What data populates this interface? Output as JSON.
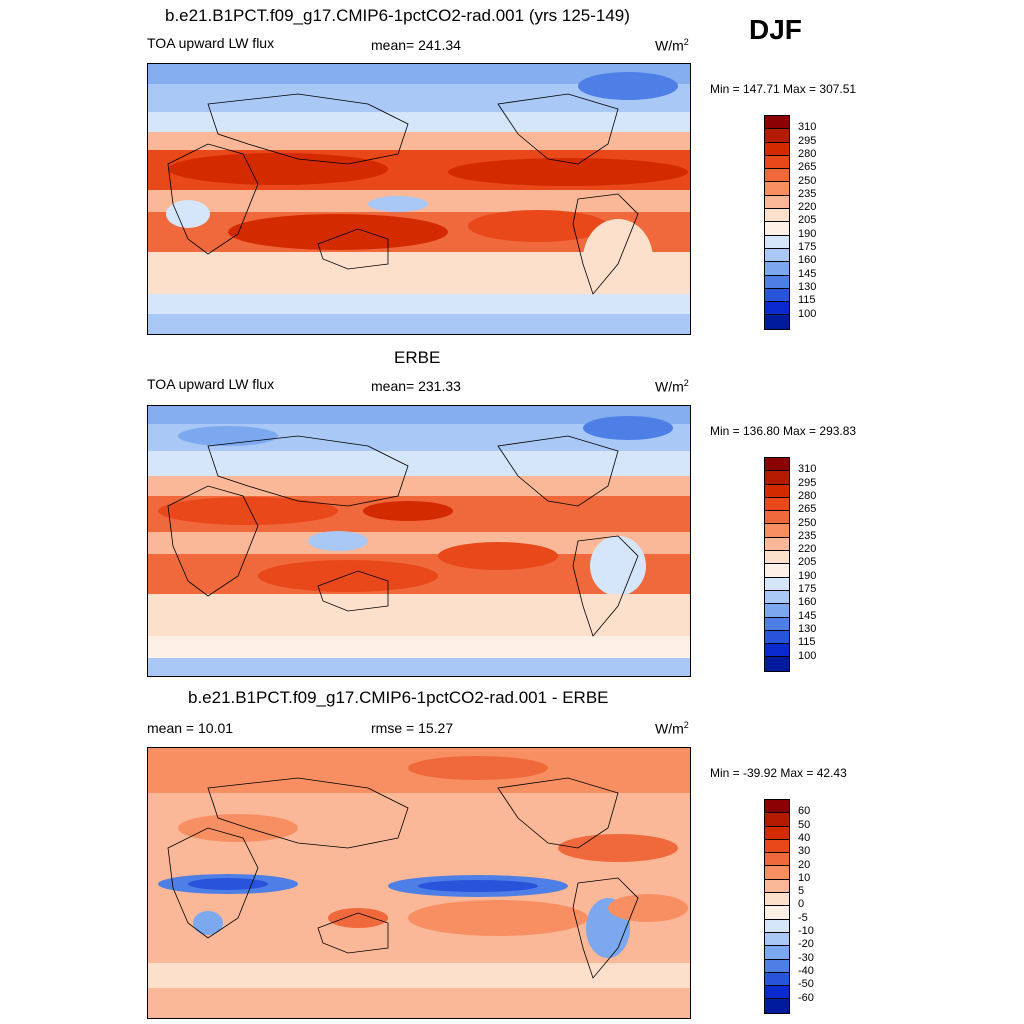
{
  "season": "DJF",
  "panels": [
    {
      "title": "b.e21.B1PCT.f09_g17.CMIP6-1pctCO2-rad.001 (yrs 125-149)",
      "left_label": "TOA upward LW flux",
      "center_label": "mean= 241.34",
      "units": "W/m",
      "units_sup": "2",
      "minmax": "Min = 147.71 Max = 307.51"
    },
    {
      "title": "ERBE",
      "left_label": "TOA upward LW flux",
      "center_label": "mean= 231.33",
      "units": "W/m",
      "units_sup": "2",
      "minmax": "Min = 136.80 Max = 293.83"
    },
    {
      "title": "b.e21.B1PCT.f09_g17.CMIP6-1pctCO2-rad.001 - ERBE",
      "left_label": "mean =  10.01",
      "center_label": "rmse =  15.27",
      "units": "W/m",
      "units_sup": "2",
      "minmax": "Min = -39.92 Max =  42.43"
    }
  ],
  "colorbars": {
    "flux": {
      "labels": [
        "310",
        "295",
        "280",
        "265",
        "250",
        "235",
        "220",
        "205",
        "190",
        "175",
        "160",
        "145",
        "130",
        "115",
        "100"
      ],
      "colors": [
        "#8b0000",
        "#b31a00",
        "#d42a00",
        "#e8481a",
        "#f0693c",
        "#f78f63",
        "#fbb898",
        "#fde0cc",
        "#fdf0e6",
        "#d6e6fa",
        "#a9c8f5",
        "#7ba8ef",
        "#4d7fe6",
        "#2854dc",
        "#0a2ad0",
        "#001a9e"
      ]
    },
    "diff": {
      "labels": [
        "60",
        "50",
        "40",
        "30",
        "20",
        "10",
        "5",
        "0",
        "-5",
        "-10",
        "-20",
        "-30",
        "-40",
        "-50",
        "-60"
      ],
      "colors": [
        "#8b0000",
        "#b31a00",
        "#d42a00",
        "#e8481a",
        "#f0693c",
        "#f78f63",
        "#fbb898",
        "#fde0cc",
        "#fdf0e6",
        "#d6e6fa",
        "#a9c8f5",
        "#7ba8ef",
        "#4d7fe6",
        "#2854dc",
        "#0a2ad0",
        "#001a9e"
      ]
    }
  }
}
